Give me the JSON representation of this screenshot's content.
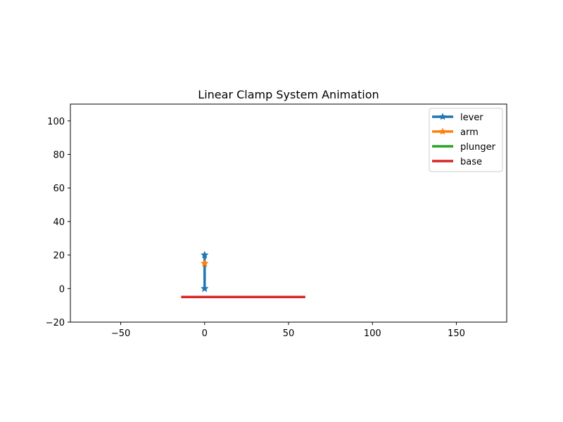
{
  "chart_data": {
    "type": "line",
    "title": "Linear Clamp System Animation",
    "xlabel": "",
    "ylabel": "",
    "xlim": [
      -80,
      180
    ],
    "ylim": [
      -20,
      110
    ],
    "xticks": [
      -50,
      0,
      50,
      100,
      150
    ],
    "yticks": [
      -20,
      0,
      20,
      40,
      60,
      80,
      100
    ],
    "xtick_labels": [
      "−50",
      "0",
      "50",
      "100",
      "150"
    ],
    "ytick_labels": [
      "−20",
      "0",
      "20",
      "40",
      "60",
      "80",
      "100"
    ],
    "grid": false,
    "legend_position": "top-right",
    "series": [
      {
        "name": "lever",
        "color": "#1f77b4",
        "marker": "star",
        "x": [
          0,
          0
        ],
        "y": [
          0,
          20
        ]
      },
      {
        "name": "arm",
        "color": "#ff7f0e",
        "marker": "star",
        "x": [
          0,
          0
        ],
        "y": [
          15,
          15
        ]
      },
      {
        "name": "plunger",
        "color": "#2ca02c",
        "marker": "none",
        "x": [],
        "y": []
      },
      {
        "name": "base",
        "color": "#d62728",
        "marker": "none",
        "x": [
          -14,
          60
        ],
        "y": [
          -5,
          -5
        ]
      }
    ]
  }
}
